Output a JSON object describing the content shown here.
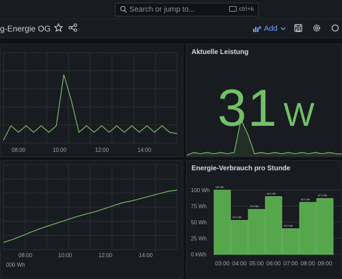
{
  "header": {
    "search_placeholder": "Search or jump to...",
    "search_shortcut": "ctrl+k"
  },
  "toolbar": {
    "dashboard_title": "g-Energie OG",
    "add_label": "Add"
  },
  "icons": [
    "search-icon",
    "star-icon",
    "share-icon",
    "add-panel-icon",
    "chevron-down-icon",
    "save-icon",
    "gear-icon",
    "more-icon"
  ],
  "colors": {
    "series": "#73bf69",
    "accent": "#6e9fff",
    "bar_fill": "#56a64b"
  },
  "panels": {
    "power_timeseries": {
      "x_ticks": [
        "08:00",
        "10:00",
        "12:00",
        "14:00"
      ]
    },
    "current_power": {
      "title": "Aktuelle Leistung",
      "value": "31",
      "unit": "W"
    },
    "energy_total": {
      "x_ticks": [
        "08:00",
        "10:00",
        "12:00",
        "14:00"
      ],
      "y_partial_label": "000 Wh"
    },
    "energy_per_hour": {
      "title": "Energie-Verbrauch pro Stunde"
    }
  },
  "chart_data": [
    {
      "type": "line",
      "title": "",
      "x": [
        "06:40",
        "07:10",
        "07:40",
        "08:10",
        "08:40",
        "09:10",
        "09:40",
        "10:00",
        "10:02",
        "10:04",
        "10:06",
        "10:20",
        "10:50",
        "11:20",
        "11:50",
        "12:20",
        "12:50",
        "13:20",
        "13:50",
        "14:20",
        "14:50",
        "15:10",
        "15:30",
        "15:50"
      ],
      "series": [
        {
          "values": [
            0,
            0.22,
            0.12,
            0.22,
            0.12,
            0.22,
            0.12,
            0.22,
            1.0,
            0.6,
            0.12,
            0.22,
            0.12,
            0.22,
            0.12,
            0.22,
            0.12,
            0.22,
            0.12,
            0.22,
            0.12,
            0.22,
            0.12,
            0.1
          ]
        }
      ],
      "xlabel": "",
      "ylabel": "",
      "grid": true
    },
    {
      "type": "line",
      "title": "",
      "x": [
        "06:40",
        "07:00",
        "07:30",
        "08:00",
        "08:30",
        "09:00",
        "09:30",
        "10:00",
        "10:30",
        "11:00",
        "11:30",
        "12:00",
        "12:30",
        "13:00",
        "13:30",
        "14:00",
        "14:30",
        "15:00",
        "15:30",
        "15:50"
      ],
      "series": [
        {
          "values": [
            0.05,
            0.1,
            0.16,
            0.22,
            0.28,
            0.33,
            0.38,
            0.43,
            0.48,
            0.52,
            0.56,
            0.61,
            0.66,
            0.71,
            0.74,
            0.78,
            0.82,
            0.86,
            0.9,
            0.92
          ]
        }
      ],
      "xlabel": "",
      "ylabel": "",
      "grid": true
    },
    {
      "type": "bar",
      "title": "Energie-Verbrauch pro Stunde",
      "categories": [
        "03:00",
        "04:00",
        "05:00",
        "06:00",
        "07:00",
        "08:00",
        "09:00"
      ],
      "values": [
        100,
        53,
        70,
        90,
        40,
        81,
        87
      ],
      "value_labels": [
        "100 Wh",
        "53.0 Wh",
        "70.0 Wh",
        "90.0 Wh",
        "40.0 Wh",
        "81.0 Wh",
        "87.0 Wh"
      ],
      "y_ticks": [
        "100 Wh",
        "75 Wh",
        "50 Wh",
        "25 Wh",
        "0 kWh"
      ],
      "ylim": [
        0,
        100
      ],
      "xlabel": "",
      "ylabel": "",
      "grid": true
    }
  ]
}
